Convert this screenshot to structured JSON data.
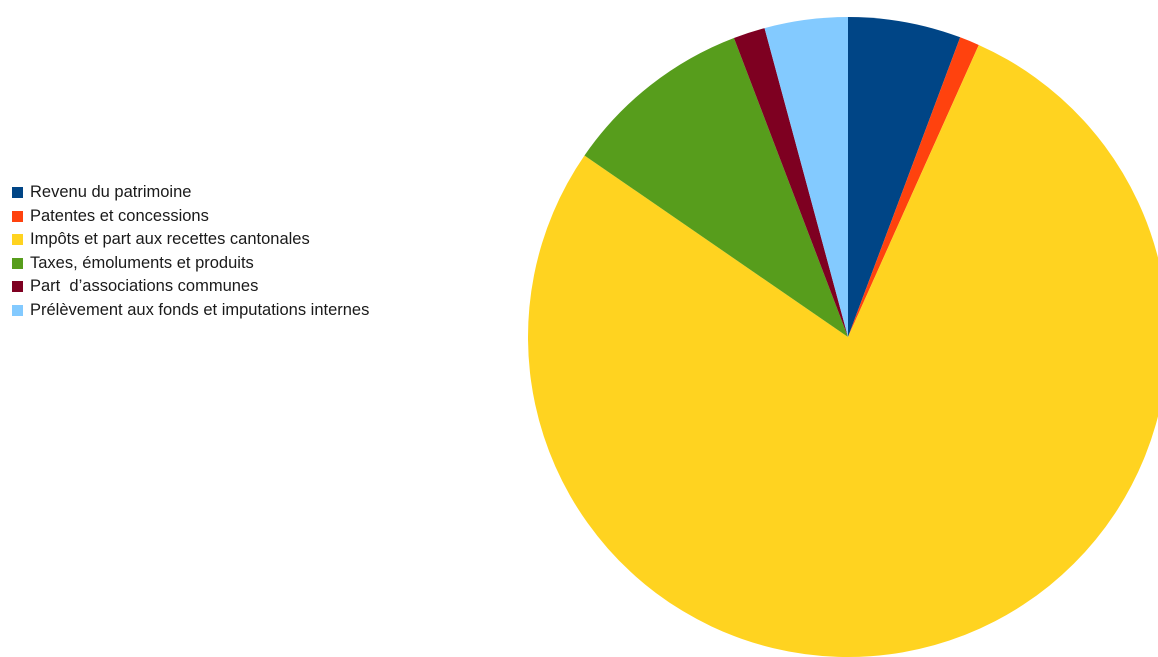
{
  "chart_data": {
    "type": "pie",
    "title": "",
    "legend_position": "left",
    "slices": [
      {
        "label": "Revenu du patrimoine",
        "value": 5.7,
        "color": "#004586"
      },
      {
        "label": "Patentes et concessions",
        "value": 1.0,
        "color": "#ff420e"
      },
      {
        "label": "Impôts et part aux recettes cantonales",
        "value": 77.9,
        "color": "#ffd320"
      },
      {
        "label": "Taxes, émoluments et produits",
        "value": 9.6,
        "color": "#579d1c"
      },
      {
        "label": "Part  d’associations communes",
        "value": 1.6,
        "color": "#7e0021"
      },
      {
        "label": "Prélèvement aux fonds et imputations internes",
        "value": 4.2,
        "color": "#83caff"
      }
    ]
  }
}
